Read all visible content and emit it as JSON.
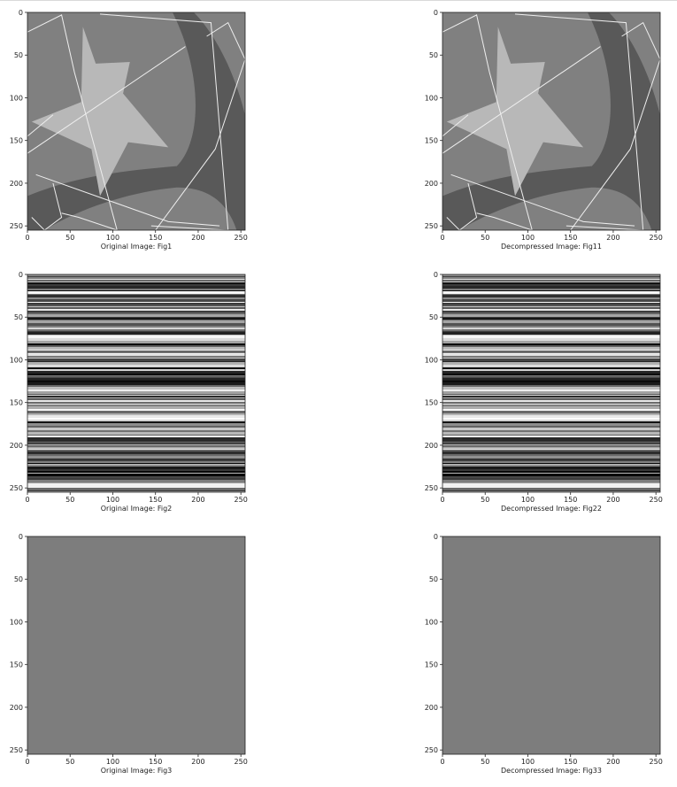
{
  "chart_data": [
    {
      "type": "heatmap",
      "image": "shapes",
      "caption": "Original Image: Fig1",
      "xticks": [
        0,
        50,
        100,
        150,
        200,
        250
      ],
      "yticks": [
        0,
        50,
        100,
        150,
        200,
        250
      ],
      "xlim": [
        0,
        255
      ],
      "ylim": [
        255,
        0
      ],
      "colormap": "gray"
    },
    {
      "type": "heatmap",
      "image": "shapes",
      "caption": "Decompressed Image: Fig11",
      "xticks": [
        0,
        50,
        100,
        150,
        200,
        250
      ],
      "yticks": [
        0,
        50,
        100,
        150,
        200,
        250
      ],
      "xlim": [
        0,
        255
      ],
      "ylim": [
        255,
        0
      ],
      "colormap": "gray"
    },
    {
      "type": "heatmap",
      "image": "horizontal-stripes",
      "caption": "Original Image: Fig2",
      "xticks": [
        0,
        50,
        100,
        150,
        200,
        250
      ],
      "yticks": [
        0,
        50,
        100,
        150,
        200,
        250
      ],
      "xlim": [
        0,
        255
      ],
      "ylim": [
        255,
        0
      ],
      "colormap": "gray"
    },
    {
      "type": "heatmap",
      "image": "horizontal-stripes",
      "caption": "Decompressed Image: Fig22",
      "xticks": [
        0,
        50,
        100,
        150,
        200,
        250
      ],
      "yticks": [
        0,
        50,
        100,
        150,
        200,
        250
      ],
      "xlim": [
        0,
        255
      ],
      "ylim": [
        255,
        0
      ],
      "colormap": "gray"
    },
    {
      "type": "heatmap",
      "image": "uniform-gray",
      "caption": "Original Image: Fig3",
      "xticks": [
        0,
        50,
        100,
        150,
        200,
        250
      ],
      "yticks": [
        0,
        50,
        100,
        150,
        200,
        250
      ],
      "xlim": [
        0,
        255
      ],
      "ylim": [
        255,
        0
      ],
      "colormap": "gray"
    },
    {
      "type": "heatmap",
      "image": "uniform-gray",
      "caption": "Decompressed Image: Fig33",
      "xticks": [
        0,
        50,
        100,
        150,
        200,
        250
      ],
      "yticks": [
        0,
        50,
        100,
        150,
        200,
        250
      ],
      "xlim": [
        0,
        255
      ],
      "ylim": [
        255,
        0
      ],
      "colormap": "gray"
    }
  ],
  "colors": {
    "background": "#ffffff",
    "axis": "#222222",
    "gray_mid": "#808080",
    "gray_dark": "#595959",
    "gray_light": "#b8b8b8",
    "line_white": "#eeeeee"
  }
}
